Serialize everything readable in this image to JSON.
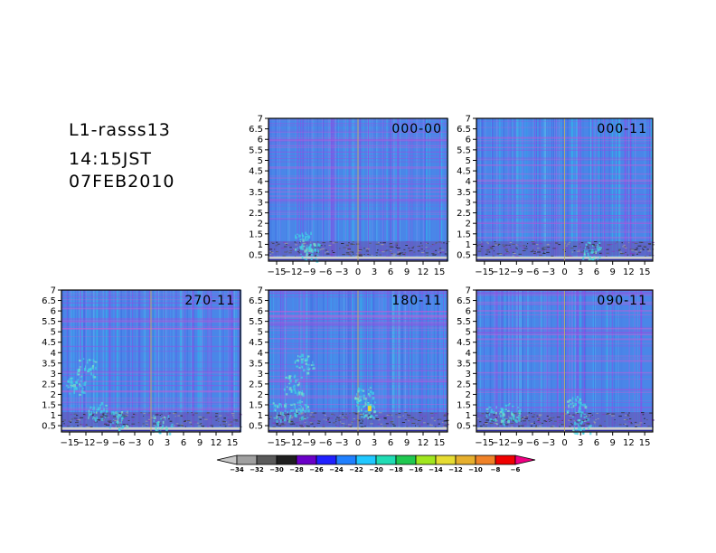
{
  "header": {
    "line1": "L1-rasss13",
    "line2": "14:15JST",
    "line3": "07FEB2010"
  },
  "chart_data": {
    "type": "heatmap",
    "xlim": [
      -16.5,
      16.5
    ],
    "ylim": [
      0.2,
      7
    ],
    "x_ticks": [
      -15,
      -12,
      -9,
      -6,
      -3,
      0,
      3,
      6,
      9,
      12,
      15
    ],
    "x_tick_labels": [
      "−15",
      "−12",
      "−9",
      "−6",
      "−3",
      "0",
      "3",
      "6",
      "9",
      "12",
      "15"
    ],
    "y_ticks": [
      0.5,
      1,
      1.5,
      2,
      2.5,
      3,
      3.5,
      4,
      4.5,
      5,
      5.5,
      6,
      6.5,
      7
    ],
    "y_tick_labels": [
      "0.5",
      "1",
      "1.5",
      "2",
      "2.5",
      "3",
      "3.5",
      "4",
      "4.5",
      "5",
      "5.5",
      "6",
      "6.5",
      "7"
    ],
    "panels": [
      {
        "label": "000-00"
      },
      {
        "label": "000-11"
      },
      {
        "label": "270-11"
      },
      {
        "label": "180-11"
      },
      {
        "label": "090-11"
      }
    ],
    "colorbar": {
      "levels": [
        -34,
        -32,
        -30,
        -28,
        -26,
        -24,
        -22,
        -20,
        -18,
        -16,
        -14,
        -12,
        -10,
        -8,
        -6
      ],
      "labels": [
        "−34",
        "−32",
        "−30",
        "−28",
        "−26",
        "−24",
        "−22",
        "−20",
        "−18",
        "−16",
        "−14",
        "−12",
        "−10",
        "−8",
        "−6"
      ],
      "colors": [
        "#c8c8c8",
        "#a0a0a0",
        "#5a5a5a",
        "#1e1e1e",
        "#6a00c8",
        "#2020ff",
        "#2080ff",
        "#20c8ff",
        "#20dcb4",
        "#20c850",
        "#a0e61e",
        "#e6dc32",
        "#e6af2d",
        "#f08228",
        "#f00000",
        "#f00082"
      ]
    }
  }
}
